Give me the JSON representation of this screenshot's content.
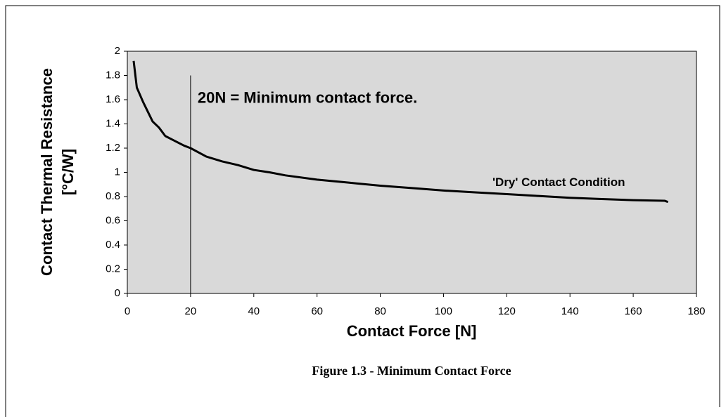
{
  "chart_data": {
    "type": "line",
    "xlabel": "Contact Force [N]",
    "ylabel": [
      "Contact Thermal Resistance",
      "[°C/W]"
    ],
    "caption": "Figure 1.3 - Minimum Contact Force",
    "x": [
      2,
      3,
      5,
      8,
      10,
      12,
      15,
      18,
      20,
      25,
      30,
      35,
      40,
      45,
      50,
      60,
      70,
      80,
      90,
      100,
      110,
      120,
      130,
      140,
      150,
      160,
      170,
      171
    ],
    "series": [
      {
        "name": "'Dry' Contact Condition",
        "color": "#000000",
        "values": [
          1.92,
          1.7,
          1.58,
          1.42,
          1.37,
          1.3,
          1.26,
          1.22,
          1.2,
          1.13,
          1.09,
          1.06,
          1.02,
          1.0,
          0.975,
          0.94,
          0.915,
          0.89,
          0.87,
          0.85,
          0.835,
          0.82,
          0.805,
          0.79,
          0.78,
          0.77,
          0.765,
          0.755
        ]
      }
    ],
    "annotations": [
      {
        "text": "20N = Minimum contact force.",
        "x": 20,
        "y_top": 1.8
      }
    ],
    "xlim": [
      0,
      180
    ],
    "xticks": [
      0,
      20,
      40,
      60,
      80,
      100,
      120,
      140,
      160,
      180
    ],
    "ylim": [
      0,
      2
    ],
    "yticks": [
      0,
      0.2,
      0.4,
      0.6,
      0.8,
      1,
      1.2,
      1.4,
      1.6,
      1.8,
      2
    ],
    "plot_background": "#d9d9d9"
  }
}
